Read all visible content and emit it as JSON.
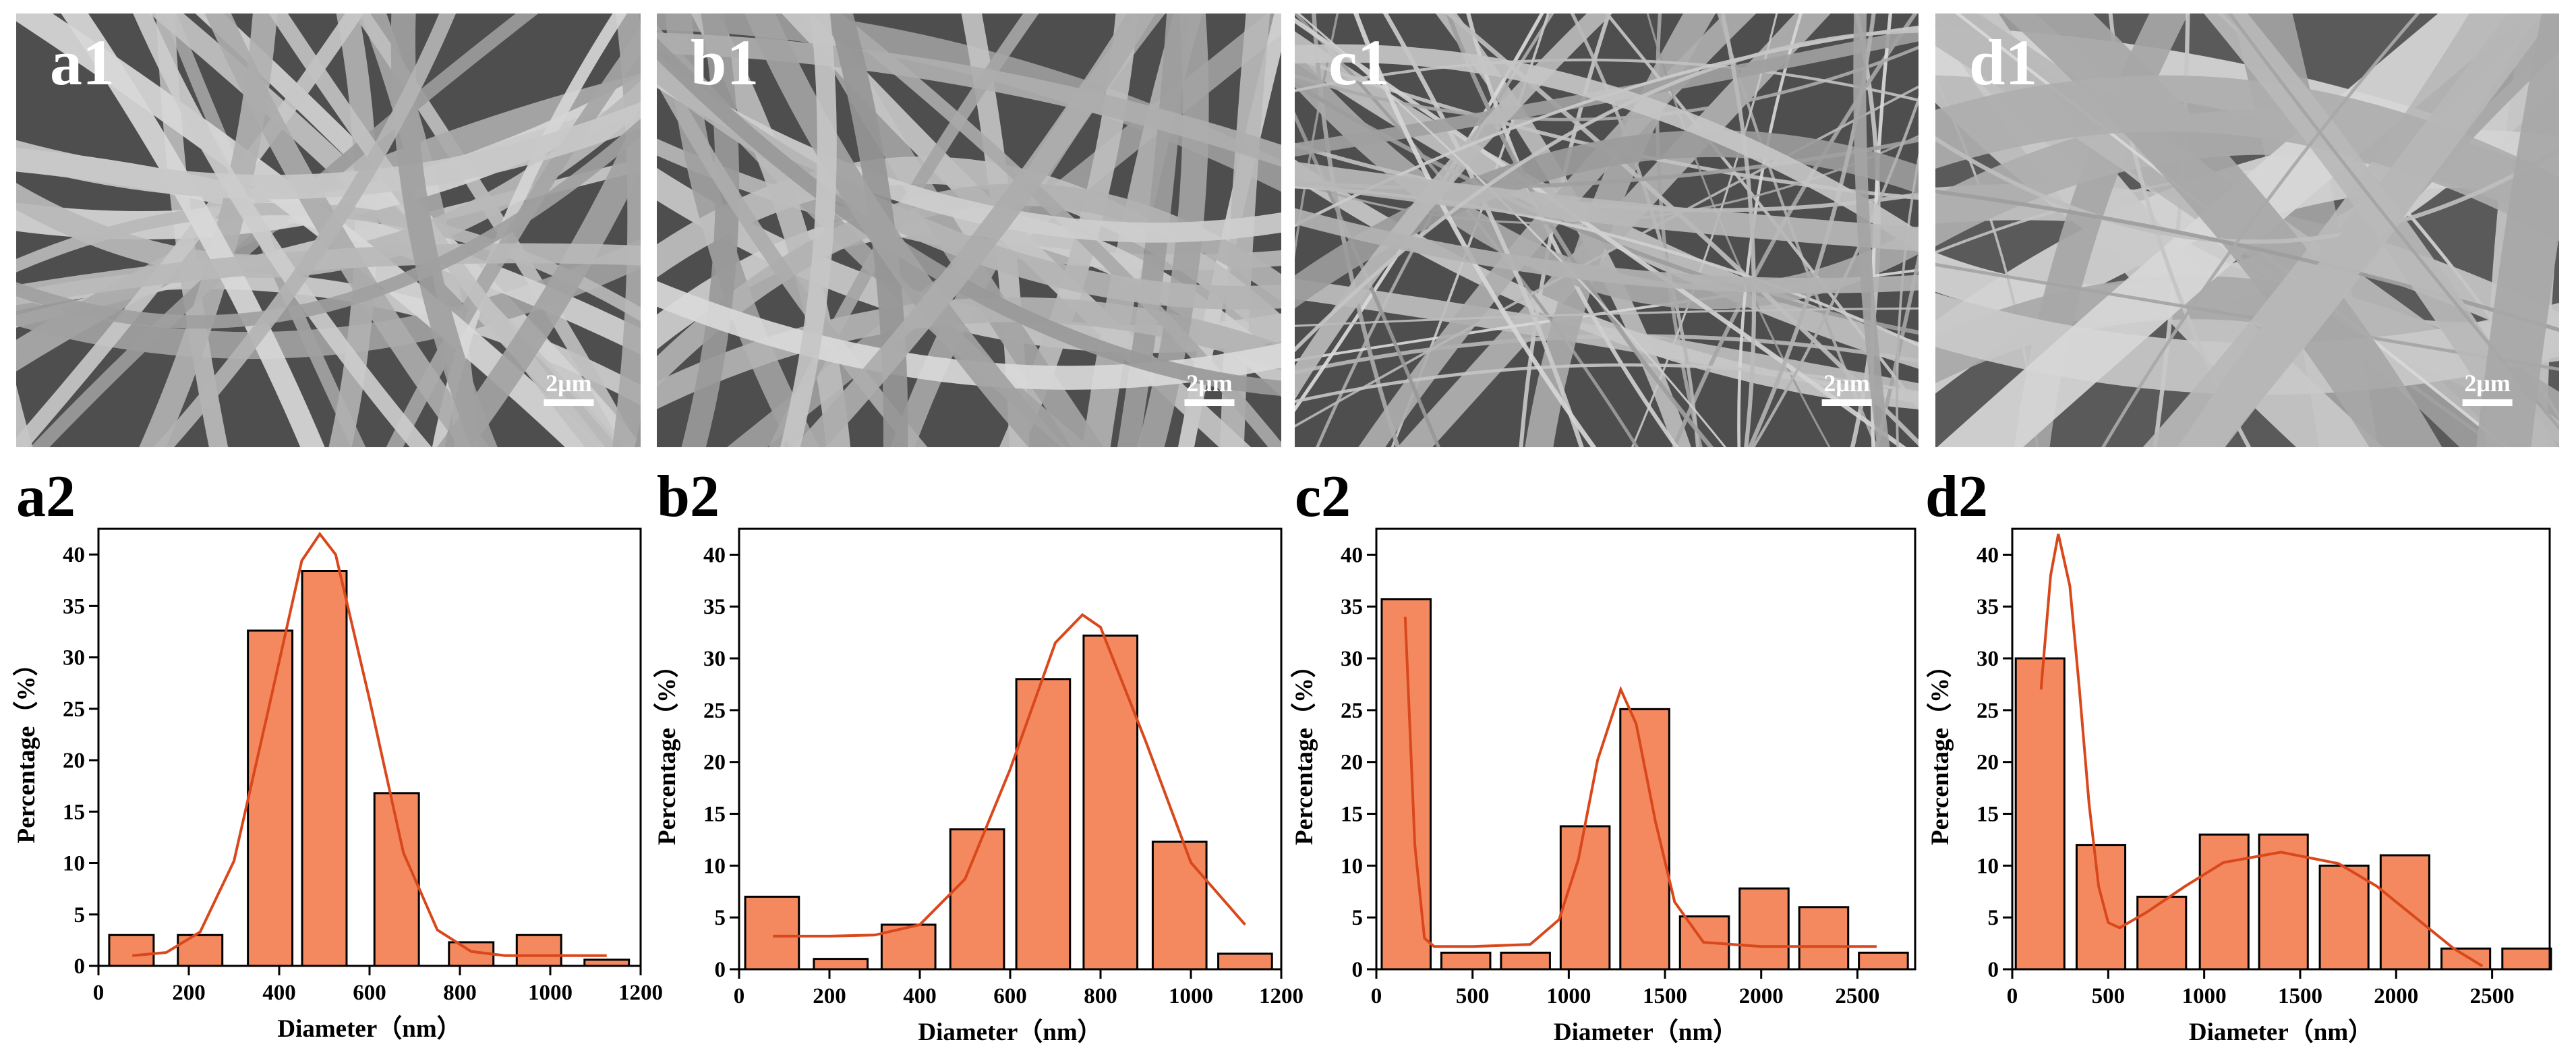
{
  "images": [
    {
      "label": "a1",
      "scale_bar": "2μm"
    },
    {
      "label": "b1",
      "scale_bar": "2μm"
    },
    {
      "label": "c1",
      "scale_bar": "2μm"
    },
    {
      "label": "d1",
      "scale_bar": "2μm"
    }
  ],
  "chart_data": [
    {
      "type": "bar",
      "label": "a2",
      "xlabel": "Diameter（nm）",
      "ylabel": "Percentage（%）",
      "color": "#f4895f",
      "x": [
        73,
        225,
        380,
        500,
        660,
        825,
        975,
        1125
      ],
      "values": [
        3,
        3,
        32.6,
        38.4,
        16.8,
        2.3,
        3,
        0.6
      ],
      "xlim": [
        0,
        1200
      ],
      "xticks": [
        0,
        200,
        400,
        600,
        800,
        1000,
        1200
      ],
      "ylim": [
        0,
        42.5
      ],
      "yticks": [
        0,
        5,
        10,
        15,
        20,
        25,
        30,
        35,
        40
      ],
      "fit": {
        "color": "#d9481c",
        "x": [
          75,
          150,
          225,
          300,
          375,
          450,
          490,
          525,
          600,
          675,
          750,
          825,
          900,
          1000,
          1125
        ],
        "values": [
          1.0,
          1.3,
          3.3,
          10.2,
          24.7,
          39.4,
          42,
          40.0,
          25.9,
          11.0,
          3.5,
          1.4,
          1.0,
          1.0,
          1.0
        ]
      }
    },
    {
      "type": "bar",
      "label": "b2",
      "xlabel": "Diameter（nm）",
      "ylabel": "Percentage（%）",
      "color": "#f4895f",
      "x": [
        73,
        225,
        375,
        527,
        673,
        822,
        975,
        1120
      ],
      "values": [
        7,
        1,
        4.3,
        13.5,
        28,
        32.2,
        12.3,
        1.5
      ],
      "xlim": [
        0,
        1200
      ],
      "xticks": [
        0,
        200,
        400,
        600,
        800,
        1000,
        1200
      ],
      "ylim": [
        0,
        42.5
      ],
      "yticks": [
        0,
        5,
        10,
        15,
        20,
        25,
        30,
        35,
        40
      ],
      "fit": {
        "color": "#d9481c",
        "x": [
          75,
          200,
          300,
          400,
          500,
          600,
          700,
          760,
          800,
          900,
          1000,
          1120
        ],
        "values": [
          3.2,
          3.2,
          3.3,
          4.3,
          8.7,
          19.3,
          31.5,
          34.2,
          33.0,
          22.0,
          10.3,
          4.3
        ]
      }
    },
    {
      "type": "bar",
      "label": "c2",
      "xlabel": "Diameter（nm）",
      "ylabel": "Percentage（%）",
      "color": "#f4895f",
      "x": [
        155,
        465,
        775,
        1085,
        1395,
        1705,
        2015,
        2325,
        2635
      ],
      "values": [
        35.7,
        1.6,
        1.6,
        13.8,
        25.1,
        5.1,
        7.8,
        6,
        1.6
      ],
      "xlim": [
        0,
        2800
      ],
      "xticks": [
        0,
        500,
        1000,
        1500,
        2000,
        2500
      ],
      "ylim": [
        0,
        42.5
      ],
      "yticks": [
        0,
        5,
        10,
        15,
        20,
        25,
        30,
        35,
        40
      ],
      "fit": {
        "color": "#d9481c",
        "x": [
          150,
          200,
          250,
          300,
          500,
          800,
          950,
          1050,
          1150,
          1270,
          1350,
          1450,
          1550,
          1700,
          2000,
          2600
        ],
        "values": [
          34,
          12,
          3,
          2.2,
          2.2,
          2.4,
          4.8,
          10.6,
          20.2,
          27,
          23.7,
          14.3,
          6.5,
          2.6,
          2.2,
          2.2
        ]
      }
    },
    {
      "type": "bar",
      "label": "d2",
      "xlabel": "Diameter（nm）",
      "ylabel": "Percentage（%）",
      "color": "#f4895f",
      "x": [
        145,
        462,
        779,
        1104,
        1413,
        1729,
        2046,
        2363,
        2680
      ],
      "values": [
        30,
        12,
        7,
        13,
        13,
        10,
        11,
        2,
        2
      ],
      "xlim": [
        0,
        2800
      ],
      "xticks": [
        0,
        500,
        1000,
        1500,
        2000,
        2500
      ],
      "ylim": [
        0,
        42.5
      ],
      "yticks": [
        0,
        5,
        10,
        15,
        20,
        25,
        30,
        35,
        40
      ],
      "fit": {
        "color": "#d9481c",
        "x": [
          150,
          200,
          240,
          300,
          350,
          400,
          450,
          500,
          560,
          700,
          900,
          1100,
          1400,
          1700,
          1900,
          2100,
          2300,
          2450
        ],
        "values": [
          27,
          38,
          42,
          37,
          27,
          16,
          8,
          4.5,
          4,
          5.5,
          8,
          10.3,
          11.3,
          10.2,
          8,
          5,
          2,
          0.3
        ]
      }
    }
  ]
}
